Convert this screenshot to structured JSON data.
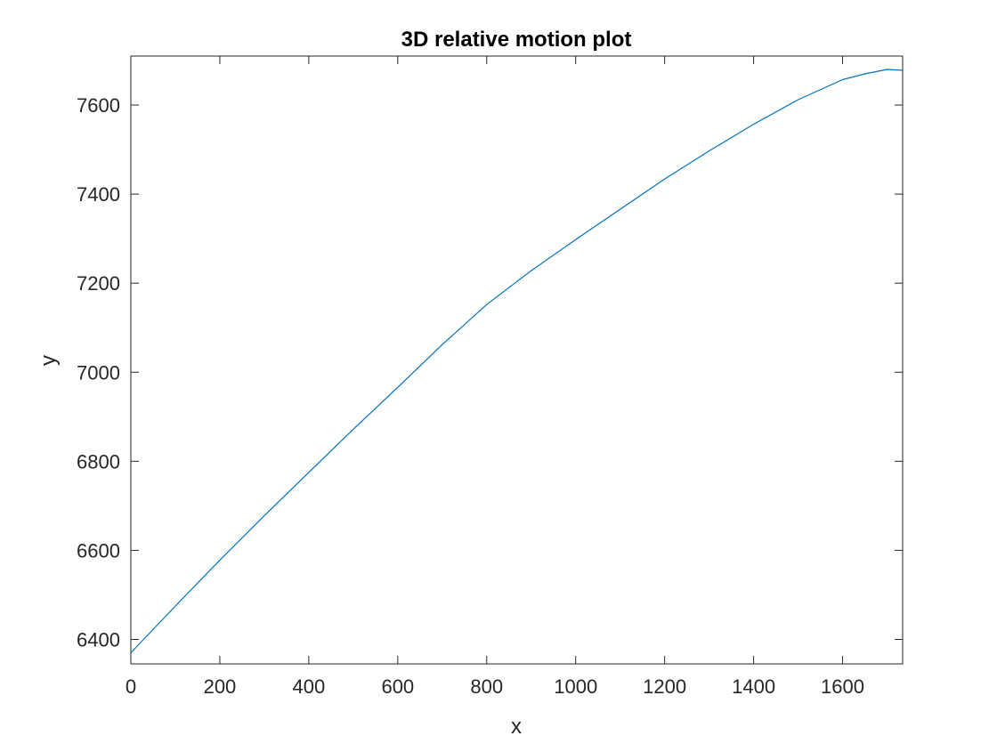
{
  "window": {
    "background": "#ffffff"
  },
  "chart_data": {
    "type": "line",
    "title": "3D relative motion plot",
    "xlabel": "x",
    "ylabel": "y",
    "xlim": [
      0,
      1735
    ],
    "ylim": [
      6345,
      7710
    ],
    "xticks": [
      0,
      200,
      400,
      600,
      800,
      1000,
      1200,
      1400,
      1600
    ],
    "xtick_labels": [
      "0",
      "200",
      "400",
      "600",
      "800",
      "1000",
      "1200",
      "1400",
      "1600"
    ],
    "yticks": [
      6400,
      6600,
      6800,
      7000,
      7200,
      7400,
      7600
    ],
    "ytick_labels": [
      "6400",
      "6600",
      "6800",
      "7000",
      "7200",
      "7400",
      "7600"
    ],
    "grid": false,
    "box": true,
    "legend": "none",
    "series": [
      {
        "color": "#0072BD",
        "x": [
          0,
          100,
          200,
          300,
          400,
          500,
          600,
          700,
          800,
          900,
          1000,
          1100,
          1200,
          1300,
          1400,
          1500,
          1600,
          1650,
          1700,
          1735
        ],
        "y": [
          6370,
          6475,
          6578,
          6678,
          6775,
          6872,
          6966,
          7062,
          7152,
          7228,
          7298,
          7366,
          7434,
          7497,
          7557,
          7612,
          7657,
          7670,
          7680,
          7678
        ]
      }
    ]
  }
}
